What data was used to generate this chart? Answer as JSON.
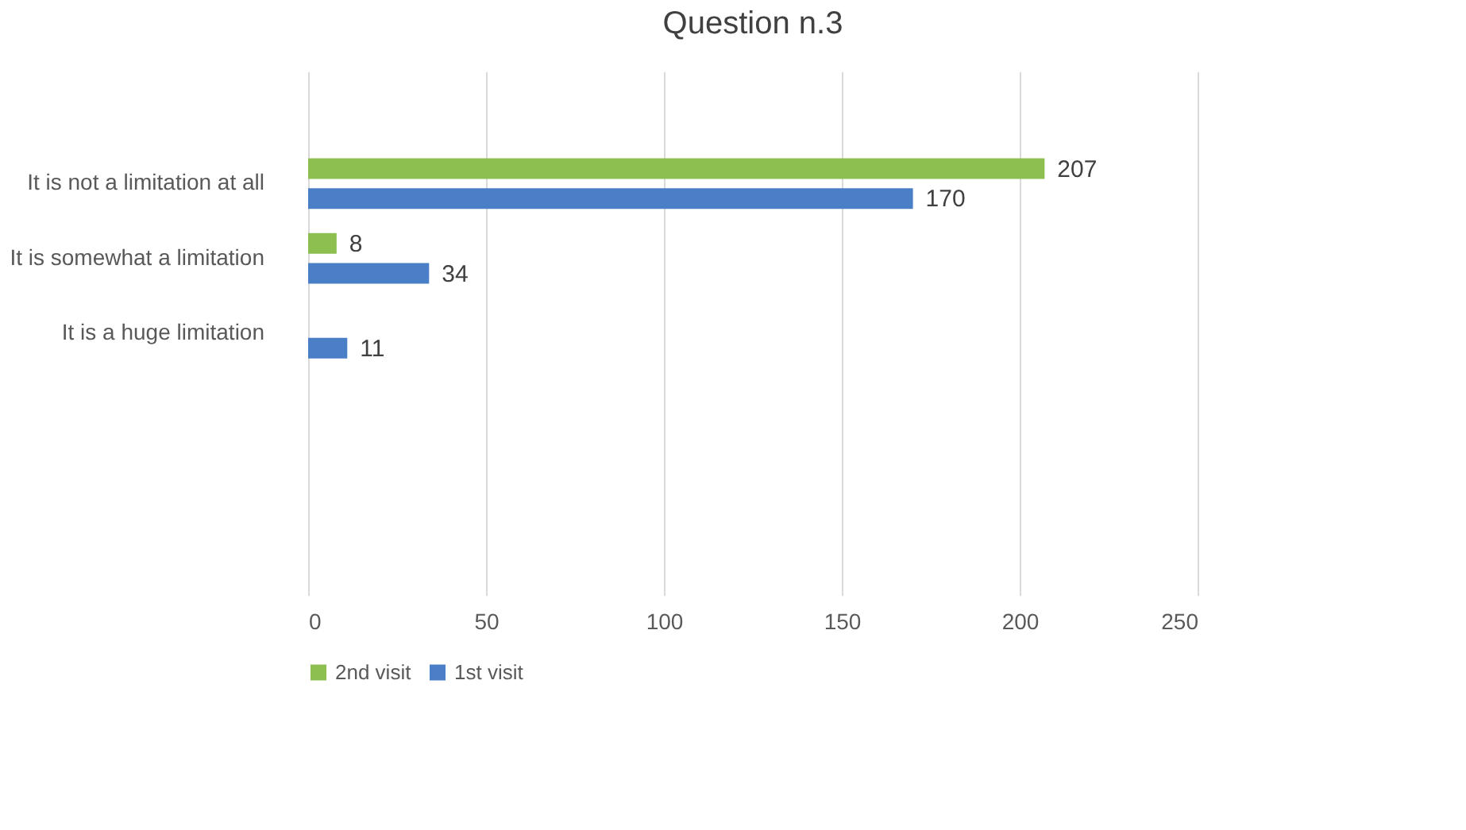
{
  "chart_data": {
    "type": "bar",
    "title": "Question n.3",
    "orientation": "horizontal",
    "categories": [
      null,
      "It is not a limitation at all",
      "It is somewhat a limitation",
      "It is a huge limitation",
      null,
      null,
      null
    ],
    "series": [
      {
        "name": "2nd visit",
        "color": "#8cbf4f",
        "values": [
          null,
          207,
          8,
          null,
          null,
          null,
          null
        ]
      },
      {
        "name": "1st visit",
        "color": "#4a7ec6",
        "values": [
          null,
          170,
          34,
          11,
          null,
          null,
          null
        ]
      }
    ],
    "xlim": [
      0,
      250
    ],
    "xticks": [
      0,
      50,
      100,
      150,
      200,
      250
    ],
    "grid": "x",
    "legend": "bottom",
    "data_labels": true
  }
}
